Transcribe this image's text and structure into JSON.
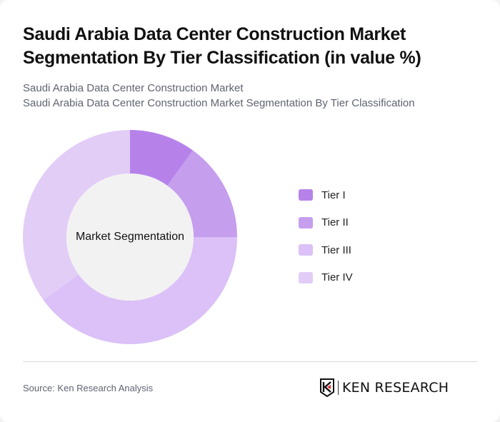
{
  "header": {
    "title": "Saudi Arabia Data Center Construction Market Segmentation By Tier Classification (in value %)",
    "subtitle_line1": "Saudi Arabia Data Center Construction Market",
    "subtitle_line2": "Saudi Arabia Data Center Construction Market Segmentation By Tier Classification"
  },
  "chart": {
    "center_label": "Market Segmentation"
  },
  "legend": [
    {
      "label": "Tier I",
      "color": "#b682ea"
    },
    {
      "label": "Tier II",
      "color": "#c59eee"
    },
    {
      "label": "Tier III",
      "color": "#dbc1f7"
    },
    {
      "label": "Tier IV",
      "color": "#e2cdf7"
    }
  ],
  "footer": {
    "source": "Source: Ken Research Analysis",
    "logo_text": "KEN RESEARCH",
    "logo_icon": "ken-research-k-shield-icon"
  },
  "chart_data": {
    "type": "pie",
    "variant": "donut",
    "title": "Saudi Arabia Data Center Construction Market Segmentation By Tier Classification (in value %)",
    "subtitle": "Saudi Arabia Data Center Construction Market Segmentation By Tier Classification",
    "center_label": "Market Segmentation",
    "categories": [
      "Tier I",
      "Tier II",
      "Tier III",
      "Tier IV"
    ],
    "values": [
      10,
      15,
      40,
      35
    ],
    "colors": [
      "#b682ea",
      "#c59eee",
      "#dbc1f7",
      "#e2cdf7"
    ],
    "unit": "%",
    "start_angle_deg": 0,
    "direction": "clockwise",
    "legend_position": "right"
  }
}
